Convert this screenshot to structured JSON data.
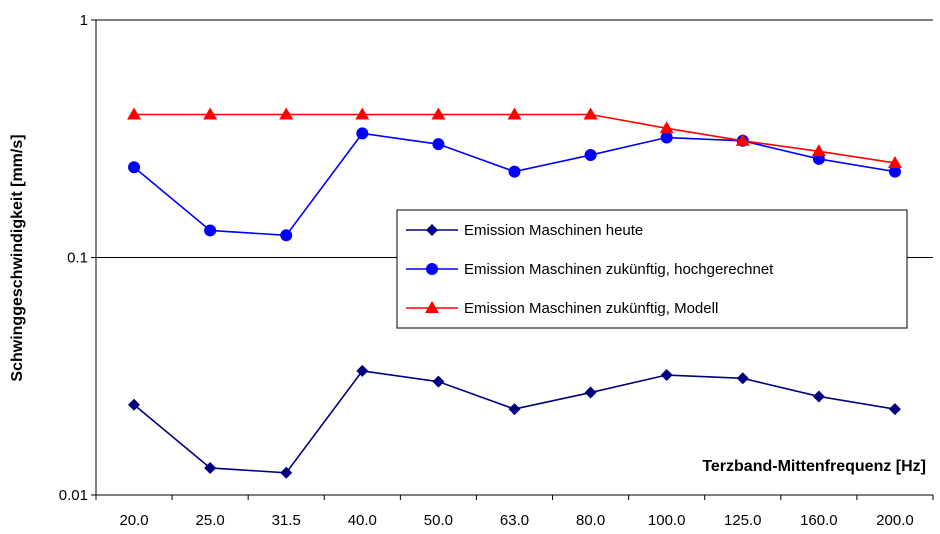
{
  "chart_data": {
    "type": "line",
    "title": "",
    "xlabel": "Terzband-Mittenfrequenz [Hz]",
    "ylabel": "Schwinggeschwindigkeit [mm/s]",
    "yscale": "log",
    "ylim": [
      0.01,
      1
    ],
    "yticks": [
      {
        "value": 0.01,
        "label": "0.01"
      },
      {
        "value": 0.1,
        "label": "0.1"
      },
      {
        "value": 1,
        "label": "1"
      }
    ],
    "grid": true,
    "legend_position": "center-right",
    "categories": [
      "20.0",
      "25.0",
      "31.5",
      "40.0",
      "50.0",
      "63.0",
      "80.0",
      "100.0",
      "125.0",
      "160.0",
      "200.0"
    ],
    "series": [
      {
        "name": "Emission Maschinen heute",
        "color": "#000080",
        "marker": "diamond",
        "values": [
          0.024,
          0.013,
          0.0124,
          0.0333,
          0.03,
          0.023,
          0.027,
          0.032,
          0.031,
          0.026,
          0.023
        ]
      },
      {
        "name": "Emission Maschinen zukünftig, hochgerechnet",
        "color": "#0000ff",
        "marker": "circle",
        "values": [
          0.24,
          0.13,
          0.124,
          0.333,
          0.3,
          0.23,
          0.27,
          0.32,
          0.31,
          0.26,
          0.23
        ]
      },
      {
        "name": "Emission Maschinen zukünftig, Modell",
        "color": "#ff0000",
        "marker": "triangle",
        "values": [
          0.4,
          0.4,
          0.4,
          0.4,
          0.4,
          0.4,
          0.4,
          0.35,
          0.31,
          0.28,
          0.25
        ]
      }
    ]
  }
}
